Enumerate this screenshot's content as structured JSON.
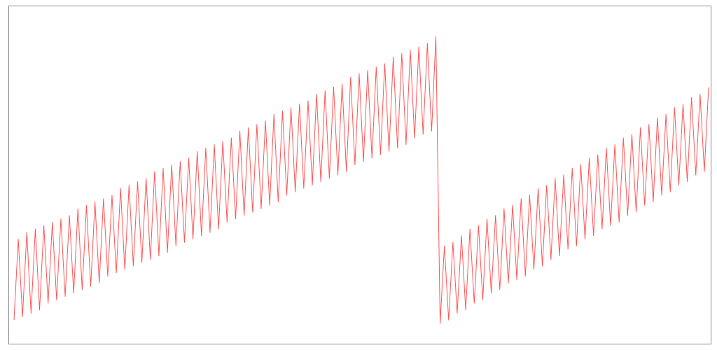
{
  "chart_data": {
    "type": "line",
    "series": [
      {
        "color": "#ff5555",
        "values": [
          7,
          31,
          8,
          33,
          9,
          34,
          10,
          35,
          12,
          36,
          13,
          37,
          14,
          38,
          15,
          40,
          16,
          41,
          17,
          42,
          18,
          43,
          20,
          44,
          21,
          46,
          22,
          47,
          23,
          48,
          24,
          49,
          25,
          51,
          26,
          52,
          27,
          53,
          29,
          54,
          30,
          55,
          31,
          57,
          32,
          58,
          33,
          59,
          34,
          60,
          36,
          61,
          37,
          63,
          38,
          64,
          39,
          65,
          40,
          66,
          41,
          68,
          42,
          69,
          44,
          70,
          45,
          71,
          46,
          72,
          47,
          74,
          48,
          75,
          49,
          76,
          50,
          77,
          51,
          79,
          53,
          80,
          54,
          81,
          55,
          82,
          56,
          83,
          57,
          85,
          58,
          86,
          59,
          87,
          61,
          88,
          62,
          89,
          63,
          91,
          6,
          29,
          7,
          30,
          9,
          32,
          10,
          34,
          12,
          35,
          13,
          37,
          15,
          38,
          16,
          40,
          18,
          41,
          19,
          43,
          20,
          44,
          22,
          46,
          23,
          47,
          25,
          49,
          26,
          50,
          28,
          52,
          29,
          53,
          31,
          55,
          32,
          56,
          34,
          58,
          35,
          59,
          36,
          61,
          38,
          62,
          39,
          64,
          41,
          65,
          42,
          67,
          44,
          68,
          45,
          70,
          47,
          71,
          48,
          73,
          50,
          74,
          51,
          76
        ]
      }
    ],
    "ylim": [
      0,
      100
    ]
  }
}
